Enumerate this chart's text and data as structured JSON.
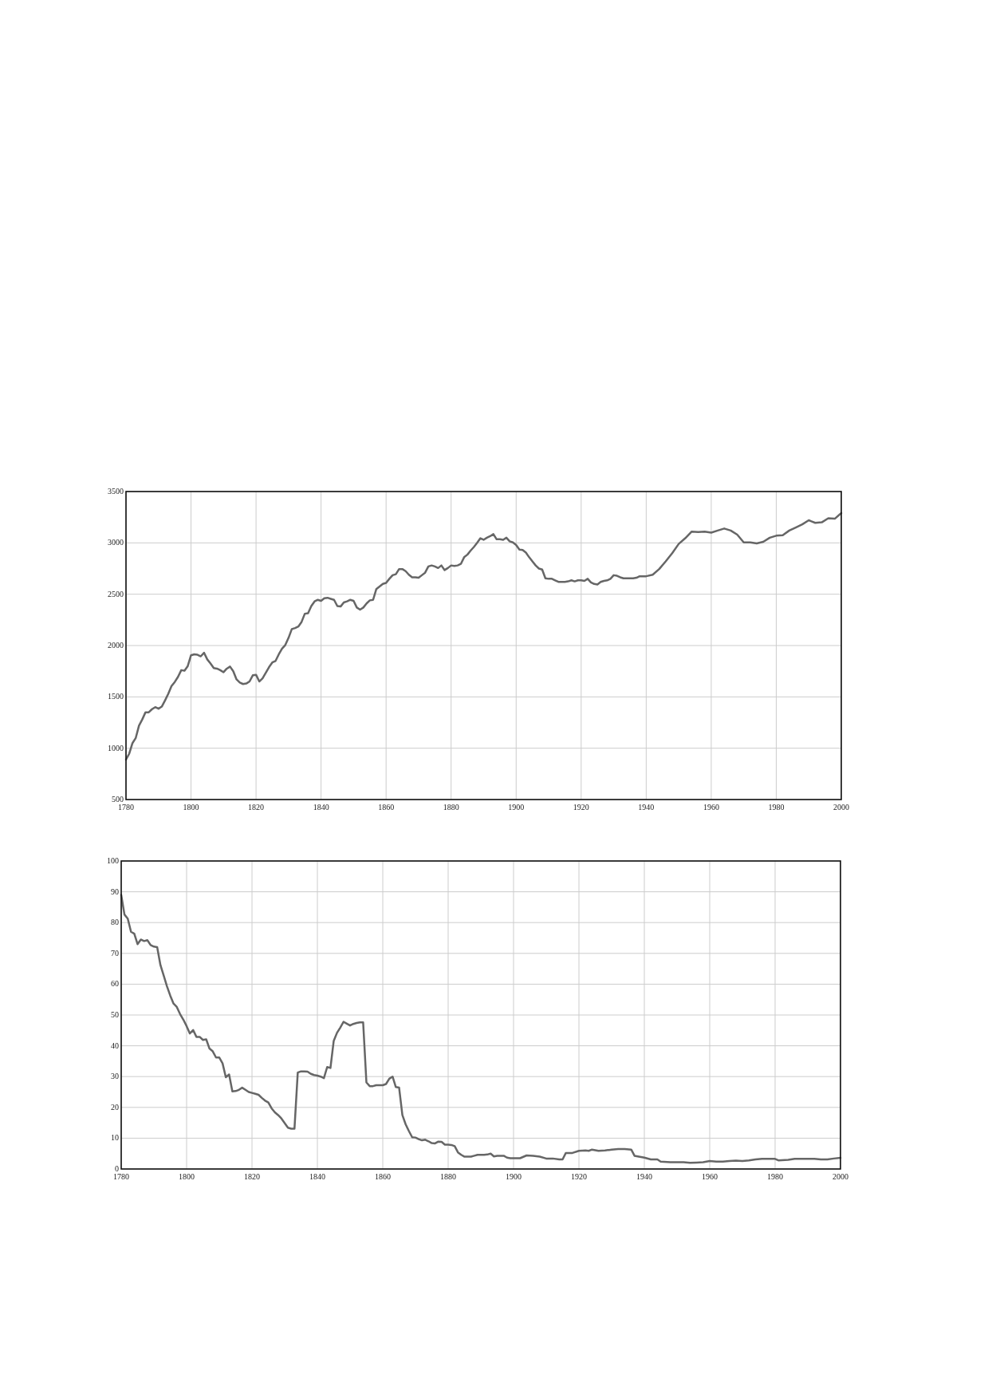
{
  "chart_data": [
    {
      "type": "line",
      "xlim": [
        1780,
        2000
      ],
      "xticks": [
        1780,
        1800,
        1820,
        1840,
        1860,
        1880,
        1900,
        1920,
        1940,
        1960,
        1980,
        2000
      ],
      "ylim": [
        500,
        3500
      ],
      "yticks": [
        500,
        1000,
        1500,
        2000,
        2500,
        3000,
        3500
      ],
      "grid": true,
      "x": [
        1780,
        1781,
        1782,
        1783,
        1784,
        1785,
        1786,
        1787,
        1788,
        1789,
        1790,
        1791,
        1792,
        1793,
        1794,
        1795,
        1796,
        1797,
        1798,
        1799,
        1800,
        1801,
        1802,
        1803,
        1804,
        1805,
        1806,
        1807,
        1808,
        1809,
        1810,
        1811,
        1812,
        1813,
        1814,
        1815,
        1816,
        1817,
        1818,
        1819,
        1820,
        1821,
        1822,
        1823,
        1824,
        1825,
        1826,
        1827,
        1828,
        1829,
        1830,
        1831,
        1832,
        1833,
        1834,
        1835,
        1836,
        1837,
        1838,
        1839,
        1840,
        1841,
        1842,
        1843,
        1844,
        1845,
        1846,
        1847,
        1848,
        1849,
        1850,
        1851,
        1852,
        1853,
        1854,
        1855,
        1856,
        1857,
        1858,
        1859,
        1860,
        1861,
        1862,
        1863,
        1864,
        1865,
        1866,
        1867,
        1868,
        1869,
        1870,
        1871,
        1872,
        1873,
        1874,
        1875,
        1876,
        1877,
        1878,
        1879,
        1880,
        1881,
        1882,
        1883,
        1884,
        1885,
        1886,
        1887,
        1888,
        1889,
        1890,
        1891,
        1892,
        1893,
        1894,
        1895,
        1896,
        1897,
        1898,
        1899,
        1900,
        1901,
        1902,
        1903,
        1904,
        1905,
        1906,
        1907,
        1908,
        1909,
        1910,
        1911,
        1912,
        1913,
        1914,
        1915,
        1916,
        1917,
        1918,
        1919,
        1920,
        1921,
        1922,
        1923,
        1924,
        1925,
        1926,
        1927,
        1928,
        1929,
        1930,
        1931,
        1932,
        1933,
        1934,
        1935,
        1936,
        1937,
        1938,
        1939,
        1940,
        1942,
        1944,
        1946,
        1948,
        1950,
        1952,
        1954,
        1956,
        1958,
        1960,
        1962,
        1964,
        1966,
        1968,
        1970,
        1972,
        1974,
        1976,
        1978,
        1980,
        1982,
        1984,
        1986,
        1988,
        1990,
        1992,
        1994,
        1996,
        1998,
        2000
      ],
      "series": [
        {
          "color": "#666666",
          "values": [
            890,
            947,
            1050,
            1100,
            1220,
            1280,
            1350,
            1350,
            1380,
            1400,
            1385,
            1405,
            1465,
            1530,
            1605,
            1645,
            1695,
            1760,
            1755,
            1800,
            1905,
            1915,
            1910,
            1895,
            1930,
            1865,
            1825,
            1780,
            1775,
            1760,
            1740,
            1775,
            1795,
            1750,
            1670,
            1640,
            1625,
            1630,
            1650,
            1710,
            1715,
            1650,
            1680,
            1735,
            1790,
            1835,
            1850,
            1915,
            1970,
            2005,
            2075,
            2160,
            2170,
            2185,
            2230,
            2310,
            2315,
            2385,
            2430,
            2445,
            2435,
            2460,
            2465,
            2455,
            2445,
            2385,
            2380,
            2420,
            2430,
            2445,
            2435,
            2370,
            2350,
            2370,
            2410,
            2440,
            2445,
            2550,
            2575,
            2600,
            2610,
            2650,
            2685,
            2695,
            2745,
            2745,
            2725,
            2690,
            2665,
            2665,
            2660,
            2685,
            2710,
            2770,
            2780,
            2770,
            2755,
            2780,
            2735,
            2755,
            2780,
            2775,
            2780,
            2795,
            2860,
            2885,
            2925,
            2960,
            3000,
            3045,
            3030,
            3050,
            3065,
            3085,
            3035,
            3035,
            3030,
            3050,
            3015,
            3005,
            2980,
            2935,
            2930,
            2905,
            2860,
            2820,
            2780,
            2750,
            2740,
            2655,
            2650,
            2650,
            2635,
            2620,
            2620,
            2620,
            2625,
            2635,
            2625,
            2635,
            2635,
            2630,
            2650,
            2615,
            2600,
            2595,
            2620,
            2630,
            2635,
            2650,
            2685,
            2680,
            2665,
            2655,
            2655,
            2655,
            2655,
            2660,
            2675,
            2675,
            2675,
            2690,
            2745,
            2820,
            2900,
            2990,
            3045,
            3110,
            3105,
            3110,
            3100,
            3120,
            3140,
            3120,
            3080,
            3005,
            3005,
            2995,
            3010,
            3050,
            3070,
            3075,
            3120,
            3150,
            3180,
            3220,
            3195,
            3200,
            3240,
            3235,
            3290
          ]
        }
      ]
    },
    {
      "type": "line",
      "xlim": [
        1780,
        2000
      ],
      "xticks": [
        1780,
        1800,
        1820,
        1840,
        1860,
        1880,
        1900,
        1920,
        1940,
        1960,
        1980,
        2000
      ],
      "ylim": [
        0,
        100
      ],
      "yticks": [
        0,
        10,
        20,
        30,
        40,
        50,
        60,
        70,
        80,
        90,
        100
      ],
      "grid": true,
      "x": [
        1780,
        1781,
        1782,
        1783,
        1784,
        1785,
        1786,
        1787,
        1788,
        1789,
        1790,
        1791,
        1792,
        1793,
        1794,
        1795,
        1796,
        1797,
        1798,
        1799,
        1800,
        1801,
        1802,
        1803,
        1804,
        1805,
        1806,
        1807,
        1808,
        1809,
        1810,
        1811,
        1812,
        1813,
        1814,
        1815,
        1816,
        1817,
        1818,
        1819,
        1820,
        1821,
        1822,
        1823,
        1824,
        1825,
        1826,
        1827,
        1828,
        1829,
        1830,
        1831,
        1832,
        1833,
        1834,
        1835,
        1836,
        1837,
        1838,
        1839,
        1840,
        1841,
        1842,
        1843,
        1844,
        1845,
        1846,
        1847,
        1848,
        1849,
        1850,
        1851,
        1852,
        1853,
        1854,
        1855,
        1856,
        1857,
        1858,
        1859,
        1860,
        1861,
        1862,
        1863,
        1864,
        1865,
        1866,
        1867,
        1868,
        1869,
        1870,
        1871,
        1872,
        1873,
        1874,
        1875,
        1876,
        1877,
        1878,
        1879,
        1880,
        1881,
        1882,
        1883,
        1884,
        1885,
        1886,
        1887,
        1888,
        1889,
        1890,
        1891,
        1892,
        1893,
        1894,
        1895,
        1896,
        1897,
        1898,
        1899,
        1900,
        1902,
        1904,
        1906,
        1908,
        1910,
        1912,
        1914,
        1915,
        1916,
        1918,
        1920,
        1922,
        1923,
        1924,
        1926,
        1928,
        1930,
        1932,
        1934,
        1936,
        1937,
        1938,
        1940,
        1942,
        1944,
        1945,
        1948,
        1950,
        1952,
        1954,
        1956,
        1958,
        1960,
        1962,
        1964,
        1966,
        1968,
        1970,
        1972,
        1974,
        1976,
        1978,
        1980,
        1981,
        1984,
        1986,
        1988,
        1990,
        1992,
        1994,
        1996,
        1998,
        2000
      ],
      "series": [
        {
          "color": "#666666",
          "values": [
            89,
            82.6,
            81.3,
            77,
            76.4,
            73,
            74.5,
            74,
            74.3,
            72.7,
            72.2,
            72,
            66.2,
            62.8,
            59.3,
            56.3,
            53.7,
            52.6,
            50.3,
            48.5,
            46.4,
            44,
            45.1,
            42.9,
            42.9,
            41.9,
            42.1,
            39.1,
            38.2,
            36.2,
            36.2,
            34.3,
            29.8,
            30.7,
            25.2,
            25.3,
            25.7,
            26.4,
            25.7,
            25,
            24.7,
            24.4,
            24.1,
            23.1,
            22.2,
            21.6,
            19.7,
            18.4,
            17.5,
            16.4,
            14.9,
            13.4,
            13.1,
            13.1,
            31.3,
            31.7,
            31.7,
            31.6,
            30.9,
            30.5,
            30.3,
            30,
            29.5,
            33.1,
            32.8,
            41.6,
            44.2,
            45.9,
            47.8,
            47.2,
            46.6,
            47.1,
            47.4,
            47.6,
            47.6,
            28.1,
            26.9,
            26.9,
            27.2,
            27.2,
            27.2,
            27.6,
            29.3,
            30,
            26.6,
            26.4,
            17.5,
            14.5,
            12.3,
            10.3,
            10.2,
            9.7,
            9.3,
            9.5,
            9,
            8.4,
            8.3,
            8.9,
            8.8,
            7.9,
            7.9,
            7.8,
            7.4,
            5.4,
            4.6,
            4,
            4,
            4,
            4.3,
            4.6,
            4.6,
            4.6,
            4.7,
            5,
            4.1,
            4.3,
            4.3,
            4.3,
            3.7,
            3.5,
            3.5,
            3.5,
            4.4,
            4.3,
            4,
            3.4,
            3.4,
            3.1,
            3.1,
            5.2,
            5.2,
            5.9,
            6,
            5.9,
            6.3,
            5.9,
            6,
            6.3,
            6.5,
            6.5,
            6.3,
            4.3,
            4.1,
            3.7,
            3.1,
            3.1,
            2.4,
            2.2,
            2.2,
            2.2,
            2,
            2.1,
            2.2,
            2.6,
            2.4,
            2.4,
            2.6,
            2.7,
            2.6,
            2.8,
            3.1,
            3.3,
            3.3,
            3.3,
            2.8,
            3,
            3.3,
            3.3,
            3.3,
            3.3,
            3.1,
            3.1,
            3.4,
            3.6
          ]
        }
      ]
    }
  ]
}
